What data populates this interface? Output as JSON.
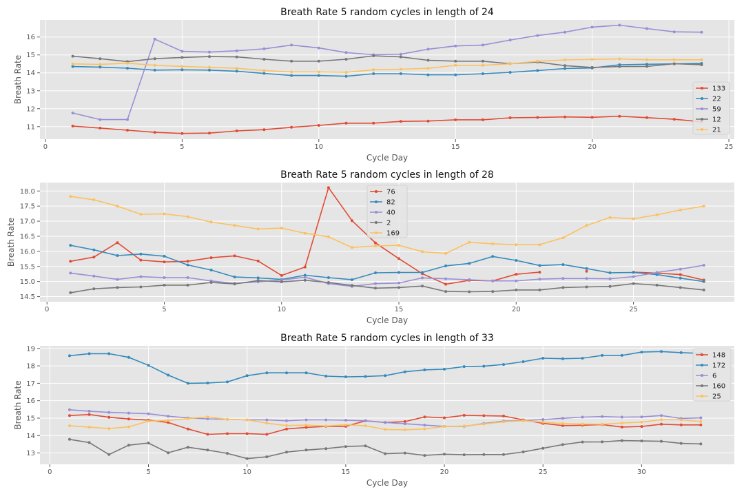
{
  "chart_data": [
    {
      "type": "line",
      "title": "Breath Rate 5 random cycles in length of 24",
      "xlabel": "Cycle Day",
      "ylabel": "Breath Rate",
      "xlim": [
        -0.2,
        25.2
      ],
      "ylim": [
        10.3,
        16.95
      ],
      "xticks": [
        0,
        5,
        10,
        15,
        20,
        25
      ],
      "yticks": [
        11,
        12,
        13,
        14,
        15,
        16
      ],
      "ytick_labels": [
        "11",
        "12",
        "13",
        "14",
        "15",
        "16"
      ],
      "grid": true,
      "legend": "lower-right",
      "x": [
        1,
        2,
        3,
        4,
        5,
        6,
        7,
        8,
        9,
        10,
        11,
        12,
        13,
        14,
        15,
        16,
        17,
        18,
        19,
        20,
        21,
        22,
        23,
        24
      ],
      "series": [
        {
          "name": "133",
          "color": "#e24a33",
          "values": [
            11.03,
            10.92,
            10.8,
            10.68,
            10.62,
            10.64,
            10.76,
            10.83,
            10.96,
            11.07,
            11.19,
            11.19,
            11.29,
            11.31,
            11.38,
            11.38,
            11.49,
            11.51,
            11.54,
            11.52,
            11.58,
            11.5,
            11.41,
            11.27
          ]
        },
        {
          "name": "22",
          "color": "#348abd",
          "values": [
            14.35,
            14.32,
            14.26,
            14.15,
            14.17,
            14.15,
            14.09,
            13.97,
            13.85,
            13.85,
            13.81,
            13.95,
            13.95,
            13.89,
            13.89,
            13.95,
            14.03,
            14.13,
            14.24,
            14.27,
            14.45,
            14.48,
            14.5,
            14.53
          ]
        },
        {
          "name": "59",
          "color": "#988ed5",
          "values": [
            11.76,
            11.39,
            11.39,
            15.88,
            15.2,
            15.16,
            15.23,
            15.34,
            15.55,
            15.39,
            15.13,
            15.01,
            15.04,
            15.32,
            15.5,
            15.55,
            15.83,
            16.08,
            16.27,
            16.55,
            16.66,
            16.47,
            16.29,
            16.27
          ]
        },
        {
          "name": "12",
          "color": "#777777",
          "values": [
            14.93,
            14.79,
            14.63,
            14.79,
            14.86,
            14.91,
            14.89,
            14.76,
            14.65,
            14.65,
            14.76,
            14.95,
            14.89,
            14.7,
            14.65,
            14.65,
            14.51,
            14.6,
            14.4,
            14.3,
            14.35,
            14.36,
            14.51,
            14.45
          ]
        },
        {
          "name": "21",
          "color": "#fbc15e",
          "values": [
            14.5,
            14.47,
            14.54,
            14.42,
            14.36,
            14.31,
            14.25,
            14.13,
            14.05,
            14.05,
            14.03,
            14.17,
            14.2,
            14.25,
            14.42,
            14.42,
            14.5,
            14.65,
            14.72,
            14.75,
            14.78,
            14.73,
            14.73,
            14.73
          ]
        }
      ]
    },
    {
      "type": "line",
      "title": "Breath Rate 5 random cycles in length of 28",
      "xlabel": "Cycle Day",
      "ylabel": "Breath Rate",
      "xlim": [
        -0.3,
        29.3
      ],
      "ylim": [
        14.33,
        18.28
      ],
      "xticks": [
        0,
        5,
        10,
        15,
        20,
        25
      ],
      "yticks": [
        14.5,
        15.0,
        15.5,
        16.0,
        16.5,
        17.0,
        17.5,
        18.0
      ],
      "ytick_labels": [
        "14.5",
        "15.0",
        "15.5",
        "16.0",
        "16.5",
        "17.0",
        "17.5",
        "18.0"
      ],
      "grid": true,
      "legend": "upper-center",
      "x": [
        1,
        2,
        3,
        4,
        5,
        6,
        7,
        8,
        9,
        10,
        11,
        12,
        13,
        14,
        15,
        16,
        17,
        18,
        19,
        20,
        21,
        22,
        23,
        24,
        25,
        26,
        27,
        28
      ],
      "series": [
        {
          "name": "76",
          "color": "#e24a33",
          "values": [
            15.67,
            15.81,
            16.29,
            15.71,
            15.65,
            15.67,
            15.79,
            15.85,
            15.68,
            15.2,
            15.48,
            18.11,
            17.02,
            16.28,
            15.76,
            15.26,
            14.91,
            15.04,
            15.02,
            15.24,
            15.31,
            null,
            15.34,
            null,
            15.31,
            15.28,
            15.23,
            15.05
          ]
        },
        {
          "name": "82",
          "color": "#348abd",
          "values": [
            16.2,
            16.05,
            15.86,
            15.91,
            15.84,
            15.55,
            15.38,
            15.15,
            15.12,
            15.07,
            15.21,
            15.13,
            15.06,
            15.29,
            15.3,
            15.3,
            15.52,
            15.6,
            15.83,
            15.7,
            15.53,
            15.56,
            15.43,
            15.29,
            15.3,
            15.23,
            15.11,
            15.0
          ]
        },
        {
          "name": "40",
          "color": "#988ed5",
          "values": [
            15.28,
            15.18,
            15.07,
            15.16,
            15.13,
            15.13,
            15.02,
            14.94,
            14.99,
            15.05,
            15.14,
            14.93,
            14.84,
            14.93,
            14.95,
            15.12,
            15.09,
            15.06,
            15.02,
            15.02,
            15.08,
            15.1,
            15.1,
            15.09,
            15.16,
            15.3,
            15.41,
            15.54
          ]
        },
        {
          "name": "2",
          "color": "#777777",
          "values": [
            14.63,
            14.76,
            14.8,
            14.82,
            14.88,
            14.88,
            14.97,
            14.92,
            15.03,
            14.99,
            15.04,
            14.97,
            14.87,
            14.78,
            14.8,
            14.85,
            14.67,
            14.66,
            14.67,
            14.72,
            14.72,
            14.8,
            14.82,
            14.84,
            14.93,
            14.88,
            14.8,
            14.72
          ]
        },
        {
          "name": "169",
          "color": "#fbc15e",
          "values": [
            17.82,
            17.71,
            17.5,
            17.23,
            17.24,
            17.15,
            16.97,
            16.86,
            16.74,
            16.77,
            16.6,
            16.48,
            16.13,
            16.18,
            16.2,
            15.99,
            15.93,
            16.3,
            16.25,
            16.22,
            16.22,
            16.45,
            16.86,
            17.12,
            17.08,
            17.21,
            17.37,
            17.5
          ]
        }
      ]
    },
    {
      "type": "line",
      "title": "Breath Rate 5 random cycles in length of 33",
      "xlabel": "Cycle Day",
      "ylabel": "Breath Rate",
      "xlim": [
        -0.5,
        34.7
      ],
      "ylim": [
        12.35,
        19.15
      ],
      "xticks": [
        0,
        5,
        10,
        15,
        20,
        25,
        30
      ],
      "yticks": [
        13,
        14,
        15,
        16,
        17,
        18,
        19
      ],
      "ytick_labels": [
        "13",
        "14",
        "15",
        "16",
        "17",
        "18",
        "19"
      ],
      "grid": true,
      "legend": "upper-right",
      "x": [
        1,
        2,
        3,
        4,
        5,
        6,
        7,
        8,
        9,
        10,
        11,
        12,
        13,
        14,
        15,
        16,
        17,
        18,
        19,
        20,
        21,
        22,
        23,
        24,
        25,
        26,
        27,
        28,
        29,
        30,
        31,
        32,
        33
      ],
      "series": [
        {
          "name": "148",
          "color": "#e24a33",
          "values": [
            15.15,
            15.21,
            15.05,
            14.95,
            14.89,
            14.75,
            14.38,
            14.07,
            14.11,
            14.11,
            14.07,
            14.38,
            14.47,
            14.53,
            14.53,
            14.85,
            14.75,
            14.8,
            15.07,
            15.02,
            15.16,
            15.14,
            15.12,
            14.9,
            14.7,
            14.57,
            14.59,
            14.63,
            14.49,
            14.52,
            14.65,
            14.61,
            14.61
          ]
        },
        {
          "name": "172",
          "color": "#348abd",
          "values": [
            18.58,
            18.7,
            18.7,
            18.49,
            18.03,
            17.47,
            17.0,
            17.02,
            17.08,
            17.44,
            17.6,
            17.6,
            17.6,
            17.41,
            17.37,
            17.39,
            17.44,
            17.66,
            17.77,
            17.81,
            17.96,
            17.98,
            18.08,
            18.24,
            18.44,
            18.41,
            18.44,
            18.6,
            18.6,
            18.79,
            18.82,
            18.76,
            18.72
          ]
        },
        {
          "name": "6",
          "color": "#988ed5",
          "values": [
            15.48,
            15.4,
            15.33,
            15.29,
            15.25,
            15.11,
            15.01,
            14.96,
            14.93,
            14.9,
            14.9,
            14.85,
            14.9,
            14.9,
            14.88,
            14.85,
            14.75,
            14.68,
            14.6,
            14.53,
            14.53,
            14.69,
            14.83,
            14.86,
            14.92,
            14.99,
            15.06,
            15.09,
            15.06,
            15.07,
            15.15,
            14.98,
            15.02
          ]
        },
        {
          "name": "160",
          "color": "#777777",
          "values": [
            13.78,
            13.6,
            12.91,
            13.45,
            13.57,
            13.01,
            13.33,
            13.17,
            12.98,
            12.68,
            12.78,
            13.05,
            13.17,
            13.25,
            13.37,
            13.41,
            12.96,
            13.0,
            12.86,
            12.93,
            12.9,
            12.91,
            12.91,
            13.06,
            13.27,
            13.48,
            13.63,
            13.64,
            13.71,
            13.69,
            13.67,
            13.55,
            13.52
          ]
        },
        {
          "name": "25",
          "color": "#fbc15e",
          "values": [
            14.56,
            14.48,
            14.4,
            14.5,
            14.83,
            14.87,
            14.97,
            15.07,
            14.93,
            14.9,
            14.71,
            14.57,
            14.6,
            14.55,
            14.62,
            14.56,
            14.35,
            14.33,
            14.38,
            14.52,
            14.55,
            14.66,
            14.79,
            14.85,
            14.77,
            14.69,
            14.66,
            14.65,
            14.72,
            14.77,
            14.91,
            14.9,
            14.81
          ]
        }
      ]
    }
  ]
}
